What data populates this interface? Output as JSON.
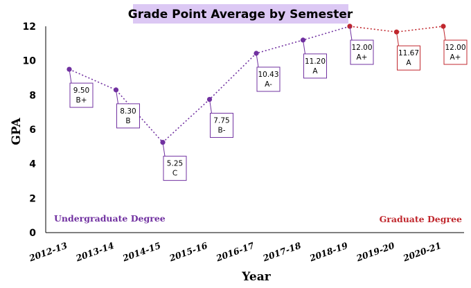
{
  "chart_data": {
    "type": "line",
    "title": "Grade Point Average by Semester",
    "xlabel": "Year",
    "ylabel": "GPA",
    "ylim": [
      0,
      12
    ],
    "yticks": [
      "0",
      "2",
      "4",
      "6",
      "8",
      "10",
      "12"
    ],
    "categories": [
      "2012-13",
      "2013-14",
      "2014-15",
      "2015-16",
      "2016-17",
      "2017-18",
      "2018-19",
      "2019-20",
      "2020-21"
    ],
    "grid": false,
    "series": [
      {
        "name": "Undergraduate Degree",
        "color": "#7030a0",
        "points": [
          {
            "x": "2012-13",
            "y": 9.5,
            "value_label": "9.50",
            "grade": "B+"
          },
          {
            "x": "2013-14",
            "y": 8.3,
            "value_label": "8.30",
            "grade": "B"
          },
          {
            "x": "2014-15",
            "y": 5.25,
            "value_label": "5.25",
            "grade": "C"
          },
          {
            "x": "2015-16",
            "y": 7.75,
            "value_label": "7.75",
            "grade": "B-"
          },
          {
            "x": "2016-17",
            "y": 10.43,
            "value_label": "10.43",
            "grade": "A-"
          },
          {
            "x": "2017-18",
            "y": 11.2,
            "value_label": "11.20",
            "grade": "A"
          },
          {
            "x": "2018-19",
            "y": 12.0,
            "value_label": "12.00",
            "grade": "A+"
          }
        ]
      },
      {
        "name": "Graduate Degree",
        "color": "#c0272d",
        "points": [
          {
            "x": "2018-19",
            "y": 12.0
          },
          {
            "x": "2019-20",
            "y": 11.67,
            "value_label": "11.67",
            "grade": "A"
          },
          {
            "x": "2020-21",
            "y": 12.0,
            "value_label": "12.00",
            "grade": "A+"
          }
        ]
      }
    ],
    "label_placement": "below-right"
  }
}
